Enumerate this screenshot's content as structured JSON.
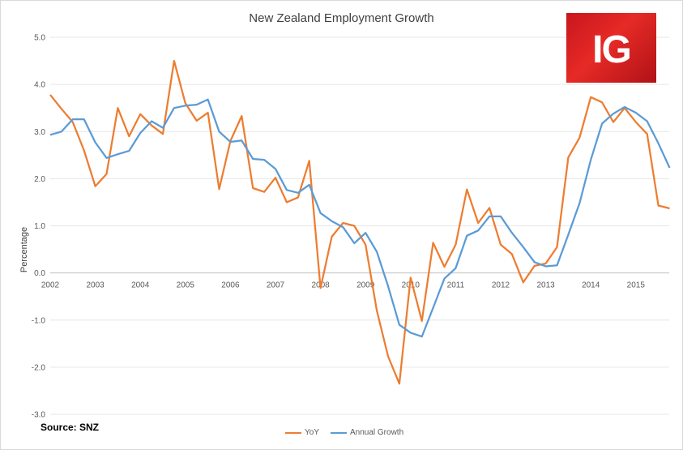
{
  "logo": {
    "text": "IG",
    "color": "#e02a25"
  },
  "source": "Source: SNZ",
  "chart_data": {
    "type": "line",
    "title": "New Zealand Employment Growth",
    "ylabel": "Percentage",
    "xlabel": "",
    "ylim": [
      -3.0,
      5.0
    ],
    "y_ticks": [
      "5.0",
      "4.0",
      "3.0",
      "2.0",
      "1.0",
      "0.0",
      "-1.0",
      "-2.0",
      "-3.0"
    ],
    "x_ticks": [
      "2002",
      "2003",
      "2004",
      "2005",
      "2006",
      "2007",
      "2008",
      "2009",
      "2010",
      "2011",
      "2012",
      "2013",
      "2014",
      "2015"
    ],
    "grid": "horizontal",
    "legend": "bottom",
    "start_year": 2002,
    "series": [
      {
        "name": "YoY",
        "color": "#ed7d31",
        "values": [
          3.78,
          3.48,
          3.2,
          2.6,
          1.84,
          2.1,
          3.5,
          2.9,
          3.37,
          3.13,
          2.95,
          4.5,
          3.6,
          3.23,
          3.4,
          1.78,
          2.8,
          3.33,
          1.8,
          1.72,
          2.02,
          1.5,
          1.6,
          2.38,
          -0.32,
          0.77,
          1.06,
          1.0,
          0.6,
          -0.8,
          -1.77,
          -2.35,
          -0.1,
          -1.02,
          0.64,
          0.13,
          0.6,
          1.77,
          1.06,
          1.38,
          0.6,
          0.4,
          -0.2,
          0.15,
          0.2,
          0.55,
          2.45,
          2.87,
          3.73,
          3.62,
          3.2,
          3.5,
          3.2,
          2.95,
          1.43,
          1.37
        ]
      },
      {
        "name": "Annual Growth",
        "color": "#5b9bd5",
        "values": [
          2.93,
          3.0,
          3.26,
          3.26,
          2.77,
          2.44,
          2.52,
          2.59,
          2.97,
          3.22,
          3.08,
          3.5,
          3.55,
          3.57,
          3.68,
          3.0,
          2.78,
          2.81,
          2.42,
          2.4,
          2.21,
          1.76,
          1.7,
          1.87,
          1.27,
          1.1,
          0.97,
          0.63,
          0.85,
          0.45,
          -0.28,
          -1.1,
          -1.27,
          -1.35,
          -0.74,
          -0.12,
          0.1,
          0.79,
          0.9,
          1.2,
          1.2,
          0.85,
          0.55,
          0.23,
          0.14,
          0.16,
          0.81,
          1.48,
          2.4,
          3.17,
          3.38,
          3.52,
          3.4,
          3.22,
          2.75,
          2.23
        ]
      }
    ]
  }
}
